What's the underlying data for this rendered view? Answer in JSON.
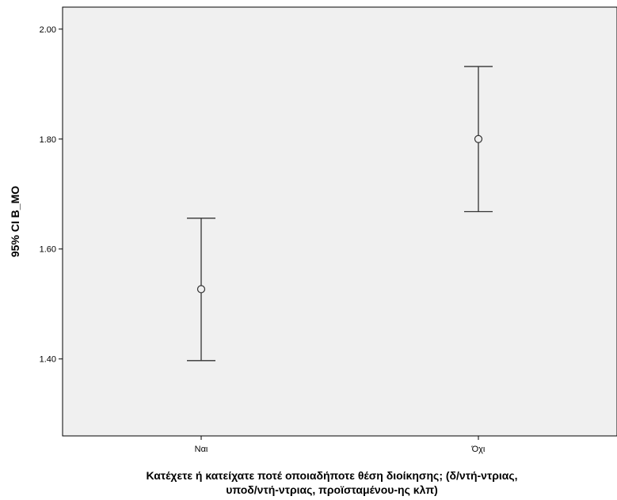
{
  "chart_data": {
    "type": "errorbar",
    "title": "",
    "xlabel_lines": [
      "Κατέχετε ή κατείχατε ποτέ οποιαδήποτε θέση διοίκησης; (δ/ντή-ντριας,",
      "υποδ/ντή-ντριας, προϊσταμένου-ης κλπ)"
    ],
    "ylabel": "95% CI B_MO",
    "categories": [
      "Ναι",
      "Όχι"
    ],
    "means": [
      1.527,
      1.8
    ],
    "ci_lower": [
      1.397,
      1.668
    ],
    "ci_upper": [
      1.656,
      1.932
    ],
    "ylim": [
      1.26,
      2.04
    ],
    "yticks": [
      1.4,
      1.6,
      1.8,
      2.0
    ],
    "ytick_labels": [
      "1.40",
      "1.60",
      "1.80",
      "2.00"
    ],
    "grid": false,
    "plot_background": "#f0f0f0",
    "line_color": "#333333"
  }
}
